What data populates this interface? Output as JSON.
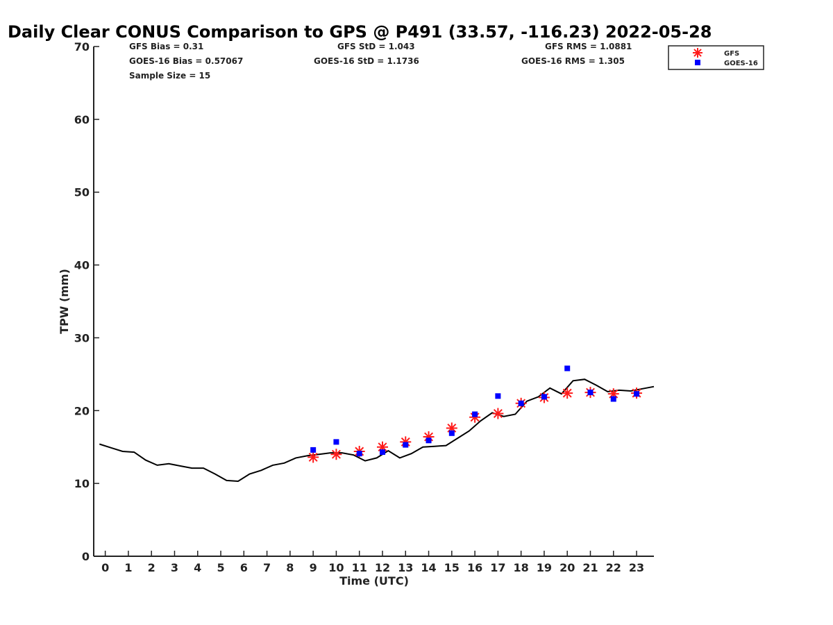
{
  "chart_data": {
    "type": "line",
    "title": "Daily Clear CONUS Comparison to GPS @ P491 (33.57, -116.23) 2022-05-28",
    "xlabel": "Time (UTC)",
    "ylabel": "TPW (mm)",
    "xlim": [
      -0.5,
      23.75
    ],
    "ylim": [
      0,
      70
    ],
    "xticks": [
      0,
      1,
      2,
      3,
      4,
      5,
      6,
      7,
      8,
      9,
      10,
      11,
      12,
      13,
      14,
      15,
      16,
      17,
      18,
      19,
      20,
      21,
      22,
      23
    ],
    "yticks": [
      0,
      10,
      20,
      30,
      40,
      50,
      60,
      70
    ],
    "grid": false,
    "legend_position": "top-right",
    "stats": {
      "gfs_bias": "GFS Bias = 0.31",
      "goes_bias": "GOES-16 Bias = 0.57067",
      "sample_size": "Sample Size = 15",
      "gfs_std": "GFS StD = 1.043",
      "goes_std": "GOES-16 StD = 1.1736",
      "gfs_rms": "GFS RMS = 1.0881",
      "goes_rms": "GOES-16 RMS = 1.305"
    },
    "series": [
      {
        "style": "line",
        "color": "#000000",
        "x": [
          -0.25,
          0.25,
          0.75,
          1.25,
          1.75,
          2.25,
          2.75,
          3.25,
          3.75,
          4.25,
          4.75,
          5.25,
          5.75,
          6.25,
          6.75,
          7.25,
          7.75,
          8.25,
          8.75,
          9.25,
          9.75,
          10.25,
          10.75,
          11.25,
          11.75,
          12.25,
          12.75,
          13.25,
          13.75,
          14.25,
          14.75,
          15.25,
          15.75,
          16.25,
          16.75,
          17.25,
          17.75,
          18.25,
          18.75,
          19.25,
          19.75,
          20.25,
          20.75,
          21.25,
          21.75,
          22.25,
          22.75,
          23.25,
          23.75
        ],
        "values": [
          15.4,
          14.9,
          14.4,
          14.3,
          13.2,
          12.5,
          12.7,
          12.4,
          12.1,
          12.1,
          11.3,
          10.4,
          10.3,
          11.3,
          11.8,
          12.5,
          12.8,
          13.5,
          13.8,
          14.0,
          14.2,
          14.2,
          13.9,
          13.1,
          13.5,
          14.5,
          13.5,
          14.1,
          15.0,
          15.1,
          15.2,
          16.2,
          17.2,
          18.6,
          19.7,
          19.2,
          19.5,
          21.3,
          21.9,
          23.1,
          22.3,
          24.1,
          24.3,
          23.5,
          22.6,
          22.8,
          22.7,
          23.0,
          23.3
        ]
      },
      {
        "name": "GFS",
        "style": "marker",
        "marker": "asterisk",
        "color": "#ff1a1a",
        "x": [
          9,
          10,
          11,
          12,
          13,
          14,
          15,
          16,
          17,
          18,
          19,
          20,
          21,
          22,
          23
        ],
        "values": [
          13.6,
          14.0,
          14.4,
          15.0,
          15.7,
          16.4,
          17.6,
          19.1,
          19.6,
          21.0,
          21.8,
          22.4,
          22.5,
          22.3,
          22.4
        ]
      },
      {
        "name": "GOES-16",
        "style": "marker",
        "marker": "square",
        "color": "#0000ff",
        "x": [
          9,
          10,
          11,
          12,
          13,
          14,
          15,
          16,
          17,
          18,
          19,
          20,
          21,
          22,
          23
        ],
        "values": [
          14.6,
          15.7,
          14.1,
          14.3,
          15.3,
          15.9,
          16.9,
          19.5,
          22.0,
          21.0,
          21.9,
          25.8,
          22.5,
          21.6,
          22.3
        ]
      }
    ]
  }
}
